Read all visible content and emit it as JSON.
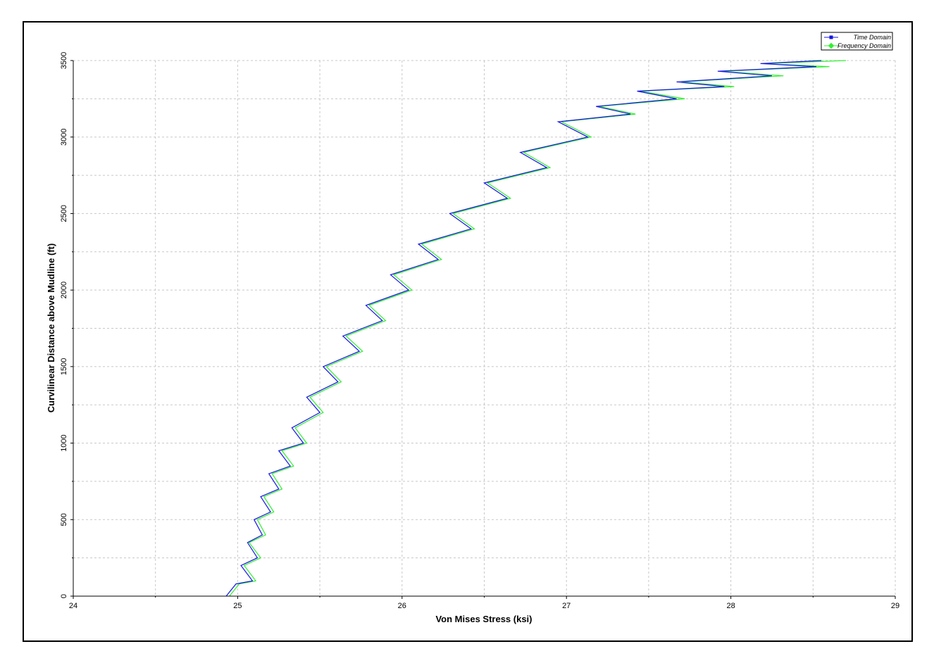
{
  "chart_data": {
    "type": "line",
    "title": "",
    "xlabel": "Von Mises Stress (ksi)",
    "ylabel": "Curvilinear Distance above Mudline (ft)",
    "xlim": [
      24,
      29
    ],
    "ylim": [
      0,
      3500
    ],
    "xticks": [
      "24",
      "25",
      "26",
      "27",
      "28",
      "29"
    ],
    "yticks": [
      "0",
      "500",
      "1000",
      "1500",
      "2000",
      "2500",
      "3000",
      "3500"
    ],
    "grid": true,
    "legend_position": "top-right",
    "colors": {
      "time_domain": "#1414e6",
      "frequency_domain": "#33ee33"
    },
    "series": [
      {
        "name": "Time Domain",
        "color": "#1414e6",
        "x": [
          24.93,
          24.99,
          25.09,
          25.02,
          25.12,
          25.06,
          25.15,
          25.1,
          25.2,
          25.14,
          25.25,
          25.19,
          25.32,
          25.25,
          25.4,
          25.33,
          25.5,
          25.42,
          25.61,
          25.52,
          25.74,
          25.64,
          25.88,
          25.78,
          26.04,
          25.93,
          26.22,
          26.1,
          26.42,
          26.29,
          26.64,
          26.5,
          26.88,
          26.72,
          27.13,
          26.95,
          27.39,
          27.18,
          27.67,
          27.43,
          27.96,
          27.67,
          28.25,
          27.92,
          28.52,
          28.18,
          28.55
        ],
        "y": [
          0,
          80,
          100,
          200,
          250,
          350,
          400,
          500,
          550,
          650,
          700,
          800,
          850,
          950,
          1000,
          1100,
          1200,
          1300,
          1400,
          1500,
          1600,
          1700,
          1800,
          1900,
          2000,
          2100,
          2200,
          2300,
          2400,
          2500,
          2600,
          2700,
          2800,
          2900,
          3000,
          3100,
          3150,
          3200,
          3250,
          3300,
          3330,
          3360,
          3400,
          3430,
          3460,
          3480,
          3500
        ]
      },
      {
        "name": "Frequency Domain",
        "color": "#33ee33",
        "x": [
          24.95,
          25.01,
          25.11,
          25.04,
          25.14,
          25.07,
          25.17,
          25.12,
          25.22,
          25.16,
          25.27,
          25.21,
          25.34,
          25.27,
          25.42,
          25.35,
          25.52,
          25.44,
          25.63,
          25.54,
          25.76,
          25.66,
          25.9,
          25.8,
          26.06,
          25.95,
          26.24,
          26.12,
          26.44,
          26.31,
          26.66,
          26.52,
          26.9,
          26.74,
          27.15,
          26.97,
          27.42,
          27.2,
          27.72,
          27.45,
          28.02,
          27.7,
          28.32,
          27.95,
          28.6,
          28.2,
          28.7
        ],
        "y": [
          0,
          80,
          100,
          200,
          250,
          350,
          400,
          500,
          550,
          650,
          700,
          800,
          850,
          950,
          1000,
          1100,
          1200,
          1300,
          1400,
          1500,
          1600,
          1700,
          1800,
          1900,
          2000,
          2100,
          2200,
          2300,
          2400,
          2500,
          2600,
          2700,
          2800,
          2900,
          3000,
          3100,
          3150,
          3200,
          3250,
          3300,
          3330,
          3360,
          3400,
          3430,
          3460,
          3480,
          3500
        ]
      }
    ]
  }
}
